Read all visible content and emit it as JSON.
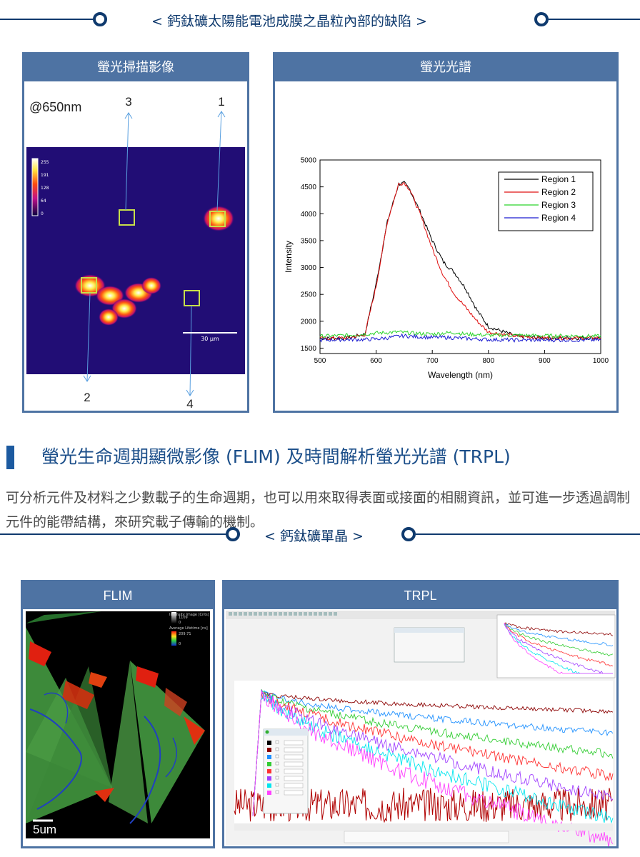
{
  "section1": {
    "title": "< 鈣鈦礦太陽能電池成膜之晶粒內部的缺陷 >"
  },
  "left_panel": {
    "header": "螢光掃描影像",
    "wavelength_label": "@650nm",
    "region_labels": [
      "1",
      "2",
      "3",
      "4"
    ],
    "colorbar_ticks": [
      "255",
      "191",
      "128",
      "64",
      "0"
    ],
    "scale_bar": "30 µm"
  },
  "right_panel": {
    "header": "螢光光譜"
  },
  "chart_data": {
    "type": "line",
    "xlabel": "Wavelength (nm)",
    "ylabel": "Intensity",
    "xlim": [
      500,
      1000
    ],
    "ylim": [
      1400,
      5000
    ],
    "x_ticks": [
      "500",
      "600",
      "700",
      "800",
      "900",
      "1000"
    ],
    "y_ticks": [
      "1500",
      "2000",
      "2500",
      "3000",
      "3500",
      "4000",
      "4500",
      "5000"
    ],
    "legend_position": "top-right",
    "x": [
      500,
      550,
      580,
      600,
      620,
      640,
      650,
      660,
      680,
      700,
      720,
      740,
      760,
      780,
      800,
      850,
      900,
      950,
      1000
    ],
    "series": [
      {
        "name": "Region 1",
        "color": "#000000",
        "values": [
          1680,
          1690,
          1760,
          2700,
          3850,
          4550,
          4570,
          4450,
          4000,
          3500,
          3100,
          2900,
          2600,
          2200,
          1900,
          1720,
          1690,
          1690,
          1690
        ]
      },
      {
        "name": "Region 2",
        "color": "#e01010",
        "values": [
          1680,
          1690,
          1750,
          2650,
          3850,
          4550,
          4580,
          4450,
          3950,
          3350,
          2850,
          2500,
          2250,
          2000,
          1800,
          1720,
          1690,
          1690,
          1690
        ]
      },
      {
        "name": "Region 3",
        "color": "#2ad42a",
        "values": [
          1720,
          1740,
          1760,
          1780,
          1790,
          1800,
          1790,
          1780,
          1770,
          1760,
          1780,
          1790,
          1760,
          1750,
          1740,
          1740,
          1730,
          1730,
          1720
        ]
      },
      {
        "name": "Region 4",
        "color": "#1a1ad0",
        "values": [
          1650,
          1660,
          1660,
          1670,
          1690,
          1720,
          1730,
          1720,
          1710,
          1700,
          1700,
          1690,
          1680,
          1670,
          1660,
          1650,
          1650,
          1650,
          1650
        ]
      }
    ]
  },
  "section2": {
    "title": "螢光生命週期顯微影像 (FLIM) 及時間解析螢光光譜 (TRPL)",
    "body": "可分析元件及材料之少數載子的生命週期，也可以用來取得表面或接面的相關資訊，並可進一步透過調制元件的能帶結構，來研究載子傳輸的機制。"
  },
  "section3": {
    "title": "< 鈣鈦礦單晶 >"
  },
  "flim_panel": {
    "header": "FLIM",
    "scale_bar": "5um",
    "legend_lines": [
      "Intensity Image [Cnts]",
      "1109",
      "0",
      "Average Lifetime [ns]",
      "209.71",
      "0"
    ]
  },
  "trpl_panel": {
    "header": "TRPL"
  },
  "colors": {
    "panel_header": "#4e73a3",
    "rule": "#0f3a6e",
    "section_title": "#1c4f8a"
  }
}
